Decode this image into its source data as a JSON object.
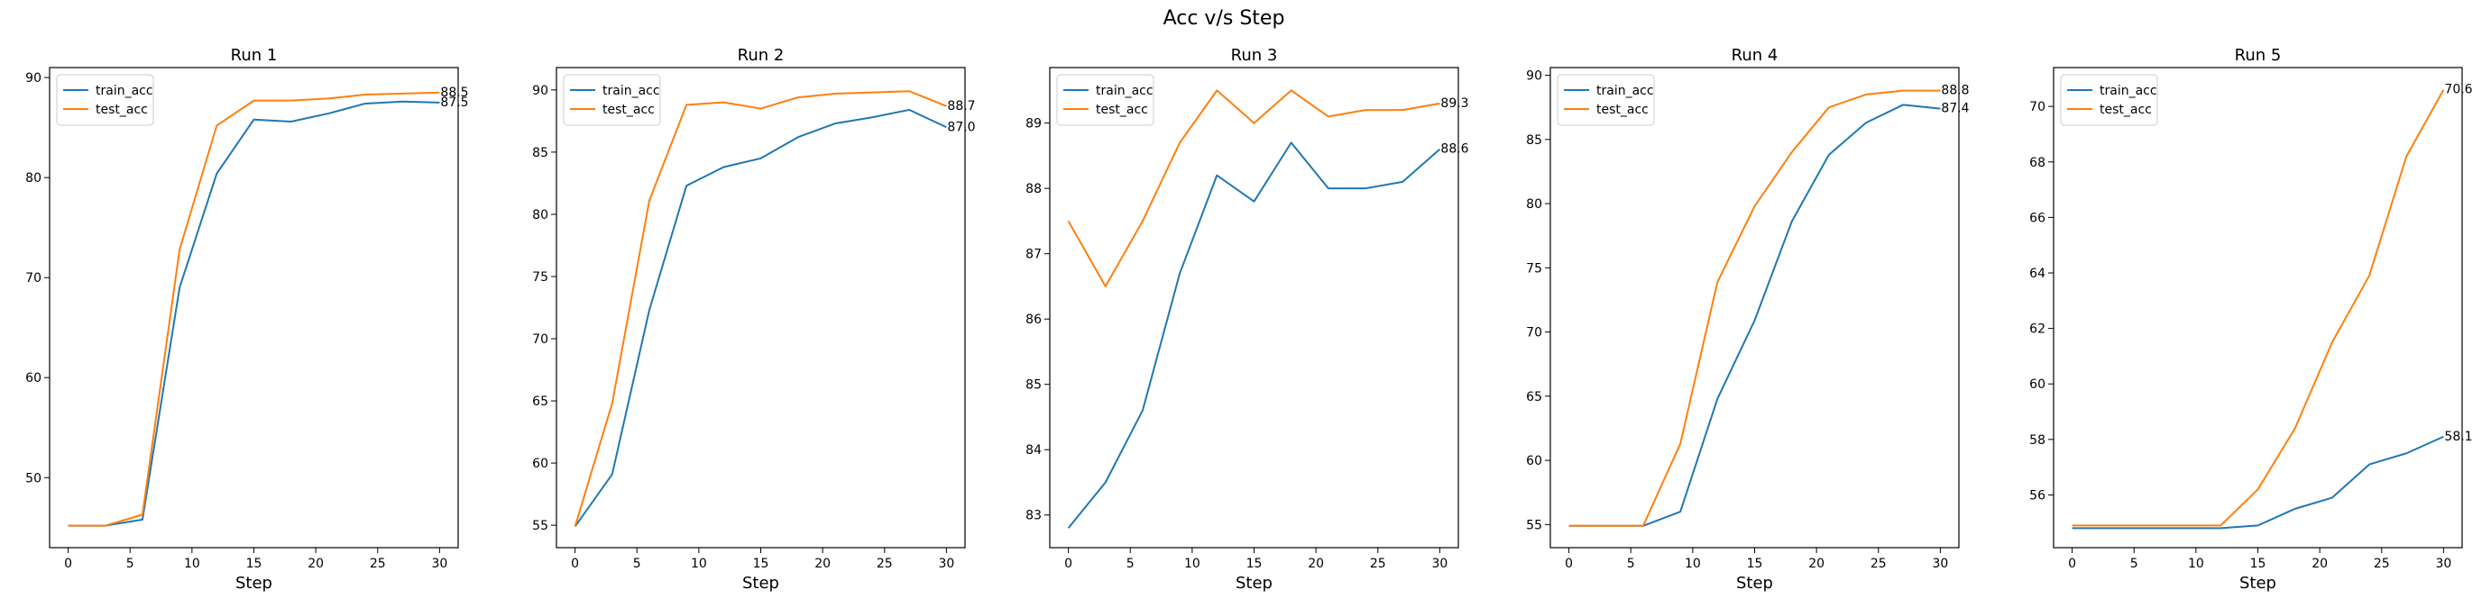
{
  "suptitle": "Acc v/s Step",
  "colors": {
    "train_acc": "#1f77b4",
    "test_acc": "#ff7f0e"
  },
  "chart_data": [
    {
      "type": "line",
      "title": "Run 1",
      "xlabel": "Step",
      "ylabel": "",
      "x": [
        0,
        3,
        6,
        9,
        12,
        15,
        18,
        21,
        24,
        27,
        30
      ],
      "xlim": [
        -1.5,
        31.5
      ],
      "ylim": [
        43,
        91
      ],
      "xticks": [
        0,
        5,
        10,
        15,
        20,
        25,
        30
      ],
      "yticks": [
        50,
        60,
        70,
        80,
        90
      ],
      "legend": "upper left",
      "series": [
        {
          "name": "train_acc",
          "values": [
            45.2,
            45.2,
            45.8,
            69.0,
            80.4,
            85.8,
            85.6,
            86.4,
            87.4,
            87.6,
            87.5
          ],
          "end_label": "87.5"
        },
        {
          "name": "test_acc",
          "values": [
            45.2,
            45.2,
            46.3,
            72.8,
            85.2,
            87.7,
            87.7,
            87.9,
            88.3,
            88.4,
            88.5
          ],
          "end_label": "88.5"
        }
      ]
    },
    {
      "type": "line",
      "title": "Run 2",
      "xlabel": "Step",
      "ylabel": "",
      "x": [
        0,
        3,
        6,
        9,
        12,
        15,
        18,
        21,
        24,
        27,
        30
      ],
      "xlim": [
        -1.5,
        31.5
      ],
      "ylim": [
        53.2,
        91.8
      ],
      "xticks": [
        0,
        5,
        10,
        15,
        20,
        25,
        30
      ],
      "yticks": [
        55,
        60,
        65,
        70,
        75,
        80,
        85,
        90
      ],
      "legend": "upper left",
      "series": [
        {
          "name": "train_acc",
          "values": [
            54.9,
            59.1,
            72.3,
            82.3,
            83.8,
            84.5,
            86.2,
            87.3,
            87.8,
            88.4,
            87.0
          ],
          "end_label": "87.0"
        },
        {
          "name": "test_acc",
          "values": [
            54.9,
            64.8,
            81.1,
            88.8,
            89.0,
            88.5,
            89.4,
            89.7,
            89.8,
            89.9,
            88.7
          ],
          "end_label": "88.7"
        }
      ]
    },
    {
      "type": "line",
      "title": "Run 3",
      "xlabel": "Step",
      "ylabel": "",
      "x": [
        0,
        3,
        6,
        9,
        12,
        15,
        18,
        21,
        24,
        27,
        30
      ],
      "xlim": [
        -1.5,
        31.5
      ],
      "ylim": [
        82.5,
        89.85
      ],
      "xticks": [
        0,
        5,
        10,
        15,
        20,
        25,
        30
      ],
      "yticks": [
        83,
        84,
        85,
        86,
        87,
        88,
        89
      ],
      "legend": "upper left",
      "series": [
        {
          "name": "train_acc",
          "values": [
            82.8,
            83.5,
            84.6,
            86.7,
            88.2,
            87.8,
            88.7,
            88.0,
            88.0,
            88.1,
            88.6
          ],
          "end_label": "88.6"
        },
        {
          "name": "test_acc",
          "values": [
            87.5,
            86.5,
            87.5,
            88.7,
            89.5,
            89.0,
            89.5,
            89.1,
            89.2,
            89.2,
            89.3
          ],
          "end_label": "89.3"
        }
      ]
    },
    {
      "type": "line",
      "title": "Run 4",
      "xlabel": "Step",
      "ylabel": "",
      "x": [
        0,
        3,
        6,
        9,
        12,
        15,
        18,
        21,
        24,
        27,
        30
      ],
      "xlim": [
        -1.5,
        31.5
      ],
      "ylim": [
        53.2,
        90.6
      ],
      "xticks": [
        0,
        5,
        10,
        15,
        20,
        25,
        30
      ],
      "yticks": [
        55,
        60,
        65,
        70,
        75,
        80,
        85,
        90
      ],
      "legend": "upper left",
      "series": [
        {
          "name": "train_acc",
          "values": [
            54.9,
            54.9,
            54.9,
            56.0,
            64.8,
            70.9,
            78.6,
            83.8,
            86.3,
            87.7,
            87.4
          ],
          "end_label": "87.4"
        },
        {
          "name": "test_acc",
          "values": [
            54.9,
            54.9,
            54.9,
            61.3,
            73.9,
            79.8,
            84.0,
            87.5,
            88.5,
            88.8,
            88.8
          ],
          "end_label": "88.8"
        }
      ]
    },
    {
      "type": "line",
      "title": "Run 5",
      "xlabel": "Step",
      "ylabel": "",
      "x": [
        0,
        3,
        6,
        9,
        12,
        15,
        18,
        21,
        24,
        27,
        30
      ],
      "xlim": [
        -1.5,
        31.5
      ],
      "ylim": [
        54.1,
        71.4
      ],
      "xticks": [
        0,
        5,
        10,
        15,
        20,
        25,
        30
      ],
      "yticks": [
        56,
        58,
        60,
        62,
        64,
        66,
        68,
        70
      ],
      "legend": "upper left",
      "series": [
        {
          "name": "train_acc",
          "values": [
            54.8,
            54.8,
            54.8,
            54.8,
            54.8,
            54.9,
            55.5,
            55.9,
            57.1,
            57.5,
            58.1
          ],
          "end_label": "58.1"
        },
        {
          "name": "test_acc",
          "values": [
            54.9,
            54.9,
            54.9,
            54.9,
            54.9,
            56.2,
            58.4,
            61.5,
            63.9,
            68.2,
            70.6
          ],
          "end_label": "70.6"
        }
      ]
    }
  ]
}
